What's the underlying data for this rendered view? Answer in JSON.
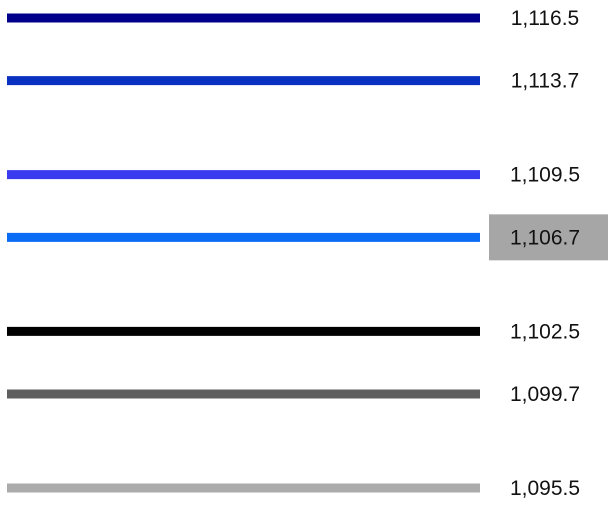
{
  "chart_data": {
    "type": "line",
    "title": "",
    "xlabel": "",
    "ylabel": "",
    "grid": false,
    "legend": "none",
    "levels": [
      {
        "value": 1116.5,
        "label": "1,116.5",
        "color": "#00008b",
        "highlight": false
      },
      {
        "value": 1113.7,
        "label": "1,113.7",
        "color": "#0a30c2",
        "highlight": false
      },
      {
        "value": 1109.5,
        "label": "1,109.5",
        "color": "#3a3aee",
        "highlight": false
      },
      {
        "value": 1106.7,
        "label": "1,106.7",
        "color": "#0a6cf5",
        "highlight": true
      },
      {
        "value": 1102.5,
        "label": "1,102.5",
        "color": "#000000",
        "highlight": false
      },
      {
        "value": 1099.7,
        "label": "1,099.7",
        "color": "#5f5f5f",
        "highlight": false
      },
      {
        "value": 1095.5,
        "label": "1,095.5",
        "color": "#ababab",
        "highlight": false
      }
    ],
    "highlight_color": "#a6a6a6"
  }
}
